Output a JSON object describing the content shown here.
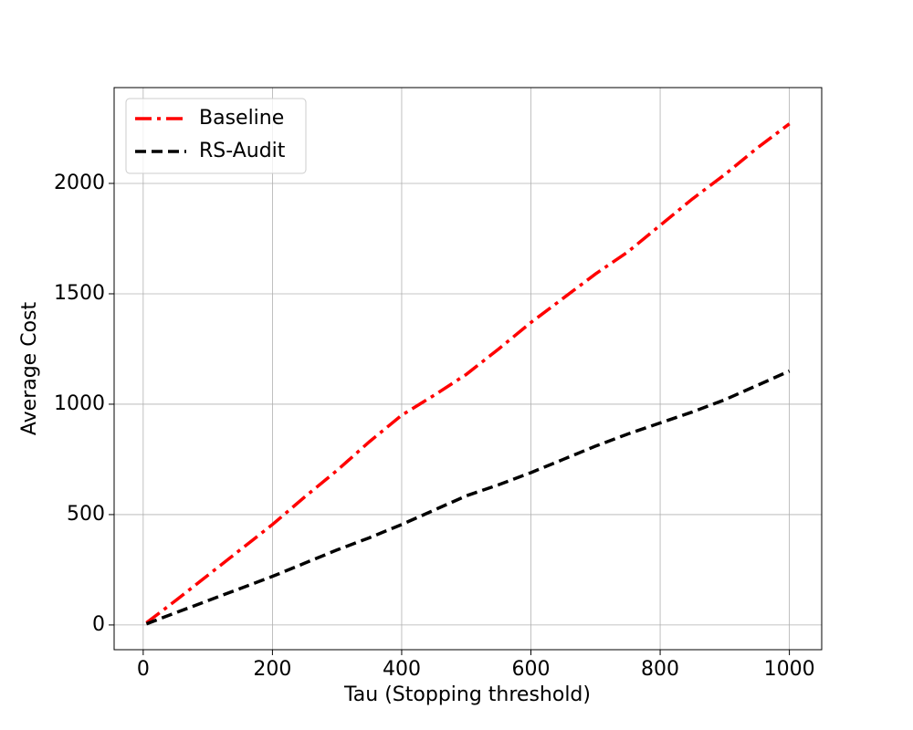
{
  "chart_data": {
    "type": "line",
    "xlabel": "Tau (Stopping threshold)",
    "ylabel": "Average Cost",
    "x": [
      5,
      50,
      100,
      150,
      200,
      250,
      300,
      350,
      400,
      450,
      500,
      550,
      600,
      650,
      700,
      750,
      800,
      850,
      900,
      950,
      1000
    ],
    "series": [
      {
        "name": "Baseline",
        "color": "#ff0000",
        "linestyle": "dashdot",
        "values": [
          10,
          110,
          225,
          340,
          455,
          580,
          700,
          830,
          950,
          1040,
          1135,
          1250,
          1370,
          1480,
          1590,
          1690,
          1810,
          1930,
          2040,
          2160,
          2270
        ]
      },
      {
        "name": "RS-Audit",
        "color": "#000000",
        "linestyle": "dashed",
        "values": [
          5,
          55,
          110,
          165,
          220,
          280,
          340,
          395,
          455,
          520,
          585,
          635,
          690,
          750,
          810,
          865,
          915,
          965,
          1020,
          1085,
          1150
        ]
      }
    ],
    "xlim": [
      -45,
      1050
    ],
    "ylim": [
      -112,
      2434
    ],
    "xticks": [
      0,
      200,
      400,
      600,
      800,
      1000
    ],
    "yticks": [
      0,
      500,
      1000,
      1500,
      2000
    ],
    "grid": true,
    "legend": "upper left"
  }
}
